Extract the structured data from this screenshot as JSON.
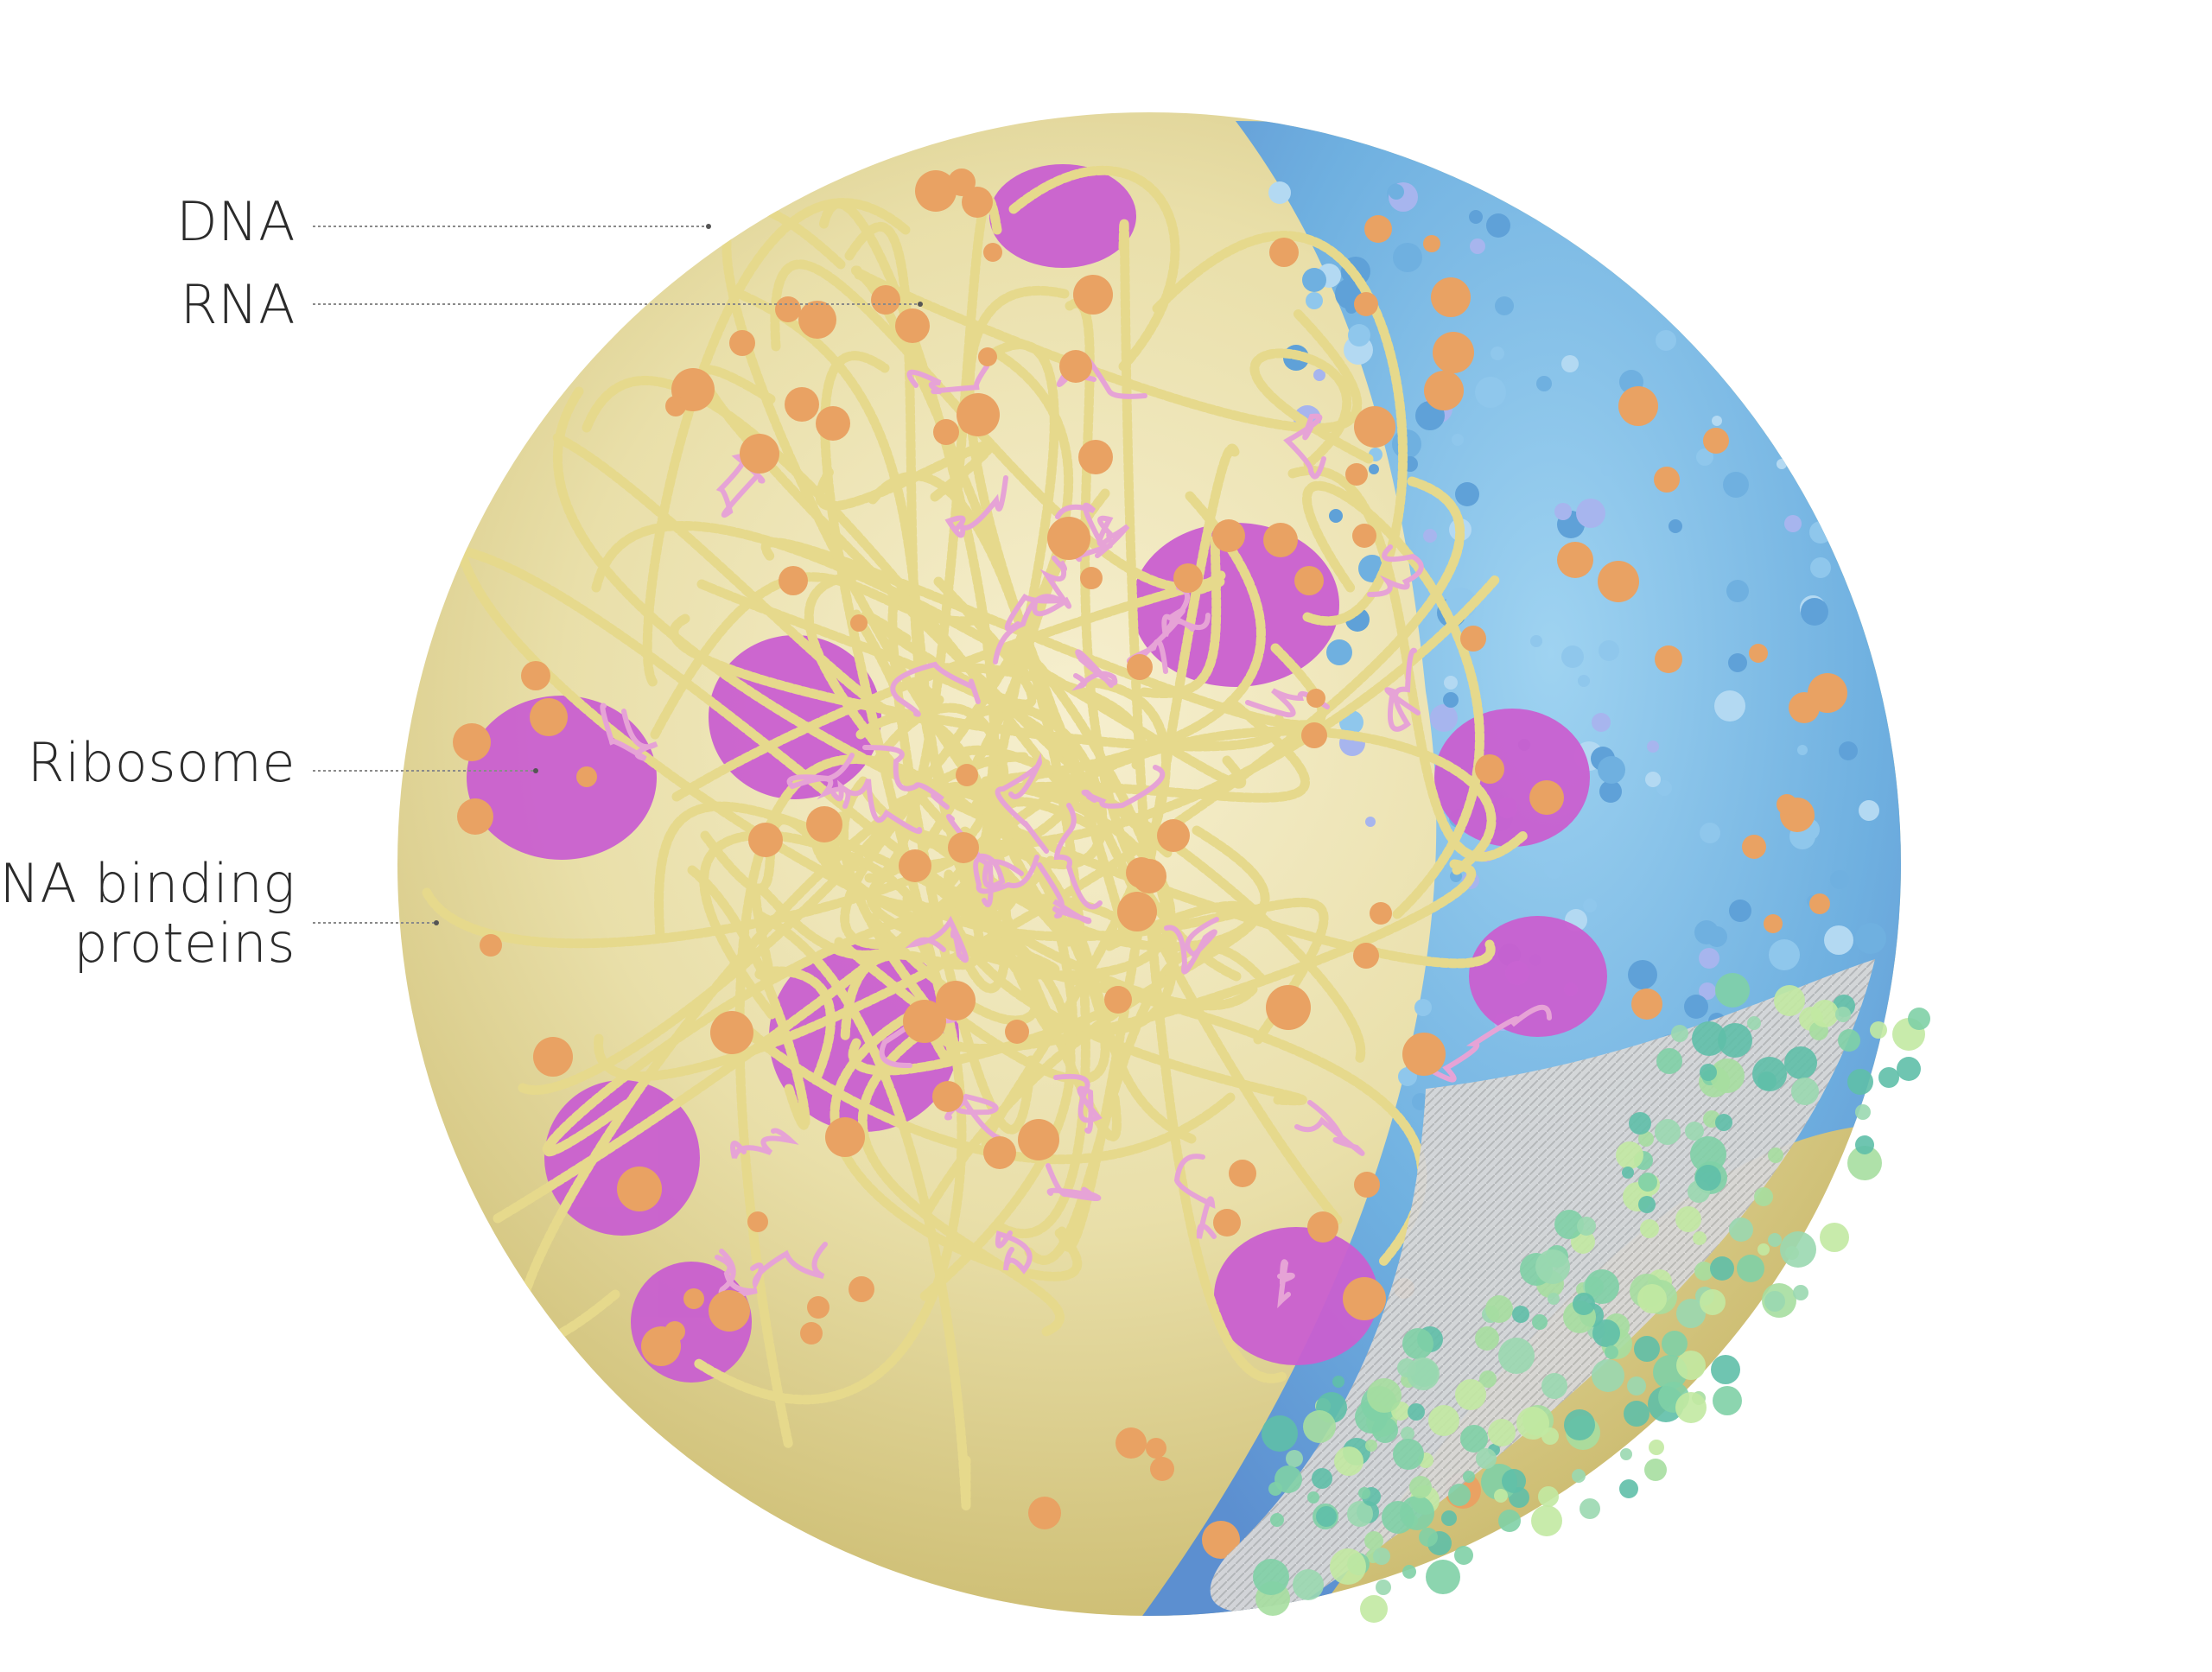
{
  "labels": {
    "dna": "DNA",
    "rna": "RNA",
    "ribosome": "Ribosome",
    "dna_binding_line1": "DNA binding",
    "dna_binding_line2": "proteins"
  },
  "colors": {
    "background": "#ffffff",
    "text": "#2b2b2b",
    "leader_line": "#8a8a8a",
    "dna_strand": "#e6d98c",
    "dna_strand_shadow": "#b9a95a",
    "rna_strand": "#e6a3d6",
    "ribosome": "#c95fd0",
    "dna_binding_protein": "#e9a263",
    "cytoplasm_protein_blue": "#6fb8e0",
    "cytoplasm_protein_violet": "#9aa6e8",
    "membrane": "#d9d9d9",
    "surface_protein_green": "#8fd49a"
  },
  "icons": {
    "cell": "cell-illustration",
    "leader": "leader-line"
  }
}
